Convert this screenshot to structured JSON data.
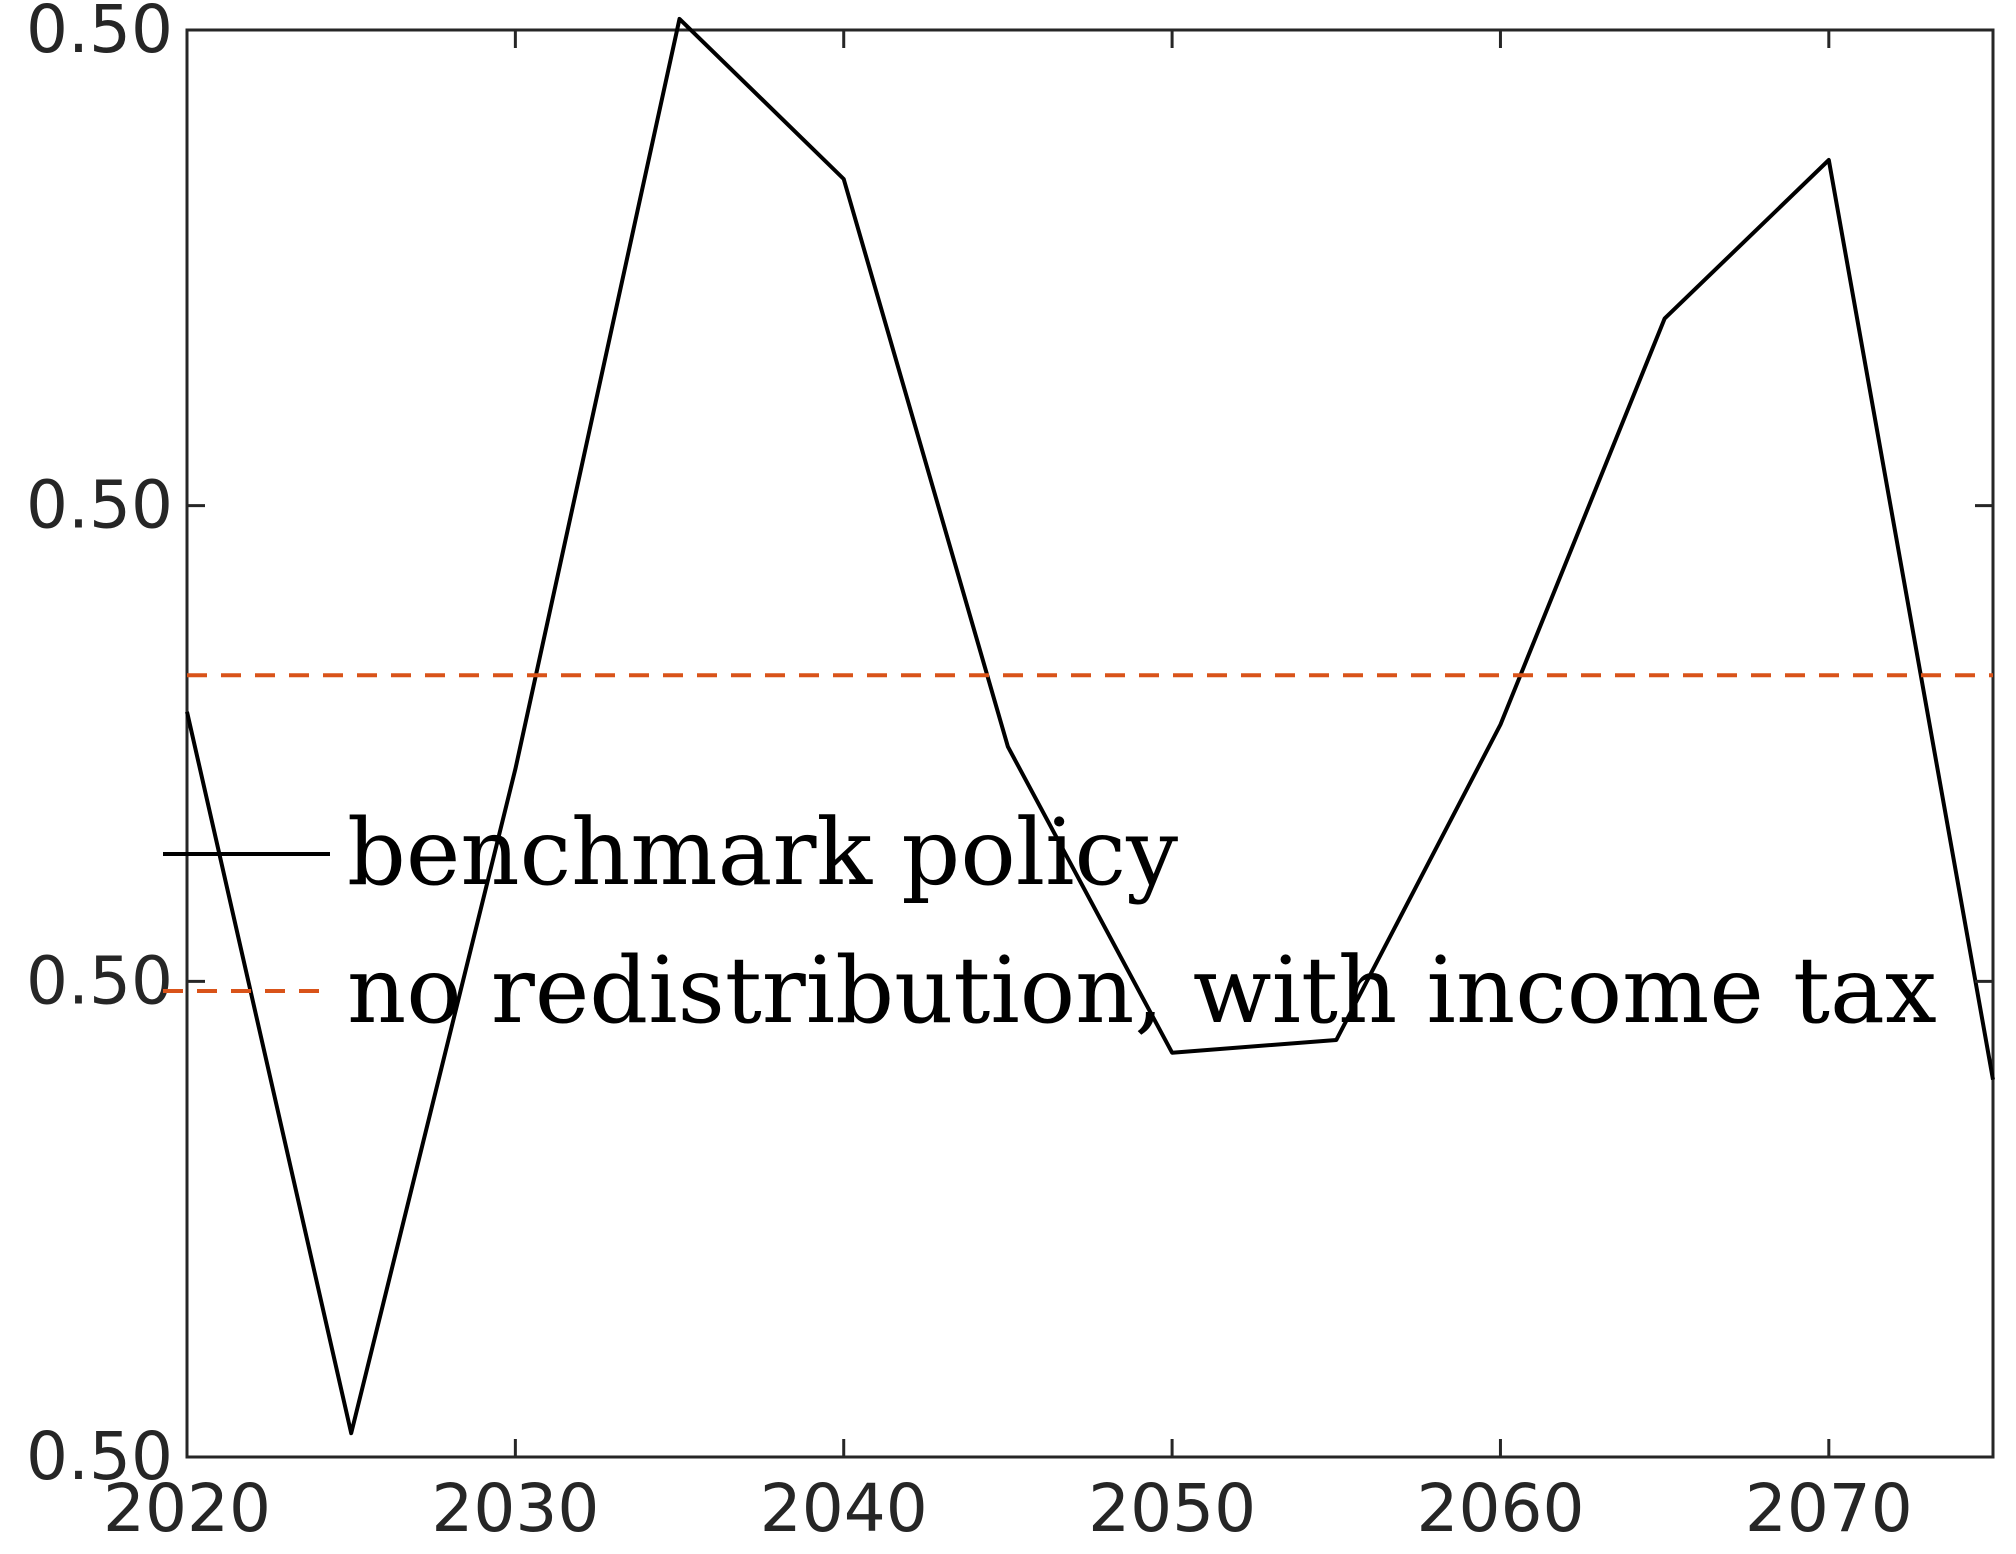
{
  "chart_data": {
    "type": "line",
    "x": [
      2020,
      2025,
      2030,
      2035,
      2040,
      2045,
      2050,
      2055,
      2060,
      2065,
      2070,
      2075
    ],
    "series": [
      {
        "name": "benchmark policy",
        "color": "#000000",
        "style": "solid",
        "values": [
          0.5047,
          0.50015,
          0.50434,
          0.50907,
          0.50806,
          0.50448,
          0.50255,
          0.50263,
          0.50462,
          0.50718,
          0.50818,
          0.50238
        ]
      },
      {
        "name": "no redistribution, with income tax",
        "color": "#D95319",
        "style": "dashed",
        "values": [
          0.50493,
          0.50493,
          0.50493,
          0.50493,
          0.50493,
          0.50493,
          0.50493,
          0.50493,
          0.50493,
          0.50493,
          0.50493,
          0.50493
        ]
      }
    ],
    "xlim": [
      2020,
      2075
    ],
    "ylim": [
      0.5,
      0.509
    ],
    "xticks": [
      "2020",
      "2030",
      "2040",
      "2050",
      "2060",
      "2070"
    ],
    "yticks": [
      "0.50",
      "0.50",
      "0.50",
      "0.50"
    ],
    "legend_placement": "center-left",
    "grid": false,
    "title": "",
    "xlabel": "",
    "ylabel": ""
  }
}
